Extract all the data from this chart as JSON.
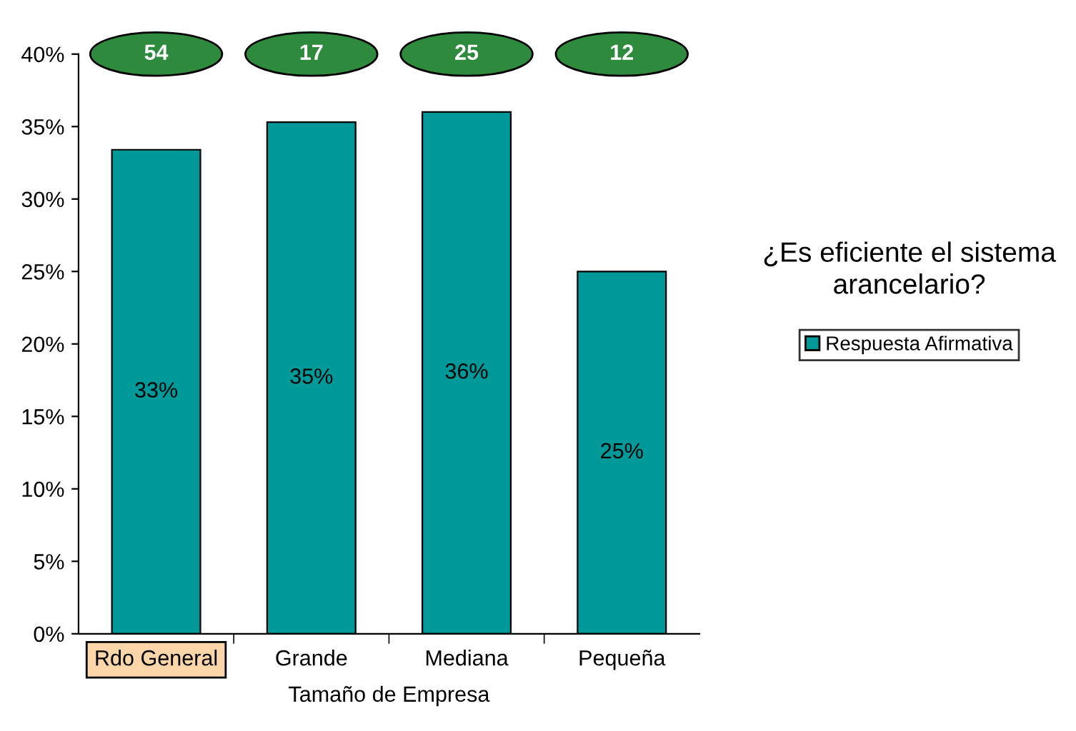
{
  "chart_data": {
    "type": "bar",
    "title": "¿Es eficiente el sistema\narancelario?",
    "xlabel": "Tamaño de Empresa",
    "categories": [
      "Rdo General",
      "Grande",
      "Mediana",
      "Pequeña"
    ],
    "series": [
      {
        "name": "Respuesta Afirmativa",
        "color": "#009999",
        "values": [
          33.4,
          35.3,
          36.0,
          25.0
        ],
        "value_labels": [
          "33%",
          "35%",
          "36%",
          "25%"
        ]
      }
    ],
    "annotations": [
      "54",
      "17",
      "25",
      "12"
    ],
    "ylim": [
      0,
      40
    ],
    "yticks": [
      {
        "value": 0,
        "label": "0%"
      },
      {
        "value": 5,
        "label": "5%"
      },
      {
        "value": 10,
        "label": "10%"
      },
      {
        "value": 15,
        "label": "15%"
      },
      {
        "value": 20,
        "label": "20%"
      },
      {
        "value": 25,
        "label": "25%"
      },
      {
        "value": 30,
        "label": "30%"
      },
      {
        "value": 35,
        "label": "35%"
      },
      {
        "value": 40,
        "label": "40%"
      }
    ],
    "legend": "right",
    "grid": false
  }
}
